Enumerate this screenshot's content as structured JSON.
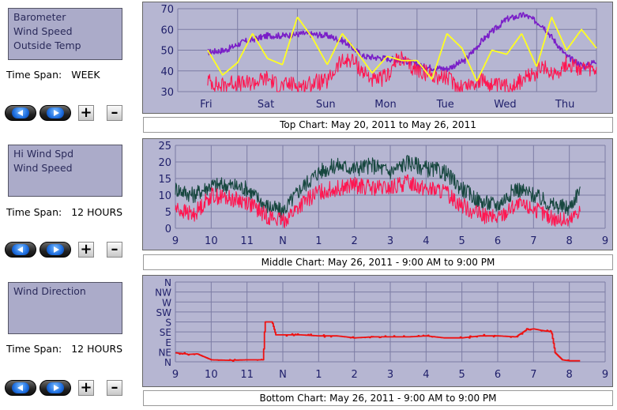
{
  "panels": [
    {
      "legend": [
        "Barometer",
        "Wind Speed",
        "Outside Temp"
      ],
      "time_span_label": "Time Span:",
      "time_span_value": "WEEK",
      "caption": "Top Chart:  May 20, 2011  to  May 26, 2011"
    },
    {
      "legend": [
        "Hi Wind Spd",
        "Wind Speed"
      ],
      "time_span_label": "Time Span:",
      "time_span_value": "12 HOURS",
      "caption": "Middle Chart:  May 26, 2011 - 9:00 AM  to  9:00 PM"
    },
    {
      "legend": [
        "Wind Direction"
      ],
      "time_span_label": "Time Span:",
      "time_span_value": "12 HOURS",
      "caption": "Bottom Chart:  May 26, 2011 - 9:00 AM  to  9:00 PM"
    }
  ],
  "controls": {
    "prev_icon": "left-arrow-icon",
    "next_icon": "right-arrow-icon",
    "zoom_in_label": "+",
    "zoom_out_label": "–"
  },
  "colors": {
    "barometer": "#7a1fc8",
    "wind_speed": "#ff1650",
    "outside_temp": "#ffff20",
    "hi_wind_spd": "#17473f",
    "wind_direction": "#ee1111",
    "plot_bg": "#b6b6d2",
    "grid": "#7c7ca4"
  },
  "chart_data": [
    {
      "type": "line",
      "ylim": [
        30,
        70
      ],
      "yticks": [
        30,
        40,
        50,
        60,
        70
      ],
      "categories": [
        "Fri",
        "Sat",
        "Sun",
        "Mon",
        "Tue",
        "Wed",
        "Thu"
      ],
      "series": [
        {
          "name": "Barometer",
          "x": [
            0,
            0.3,
            0.6,
            1,
            1.3,
            1.6,
            2,
            2.3,
            2.6,
            3,
            3.3,
            3.6,
            4,
            4.3,
            4.6,
            5,
            5.3,
            5.6,
            6,
            6.3,
            6.5
          ],
          "values": [
            49,
            50,
            54,
            57,
            57,
            58,
            57,
            54,
            47,
            46,
            45,
            42,
            41,
            45,
            55,
            65,
            67,
            62,
            47,
            42,
            45
          ]
        },
        {
          "name": "Wind Speed",
          "x": [
            0,
            0.2,
            0.4,
            0.6,
            0.8,
            1,
            1.2,
            1.4,
            1.6,
            1.8,
            2,
            2.2,
            2.4,
            2.6,
            2.8,
            3,
            3.2,
            3.4,
            3.6,
            3.8,
            4,
            4.2,
            4.4,
            4.6,
            4.8,
            5,
            5.2,
            5.4,
            5.6,
            5.8,
            6,
            6.2,
            6.5
          ],
          "values": [
            34,
            31,
            33,
            32,
            33,
            35,
            31,
            32,
            31,
            33,
            33,
            42,
            44,
            38,
            33,
            36,
            45,
            40,
            38,
            36,
            35,
            31,
            32,
            34,
            31,
            31,
            33,
            36,
            40,
            37,
            42,
            40,
            38
          ]
        },
        {
          "name": "Outside Temp",
          "x": [
            0,
            0.25,
            0.5,
            0.75,
            1,
            1.25,
            1.5,
            1.75,
            2,
            2.25,
            2.5,
            2.75,
            3,
            3.25,
            3.5,
            3.75,
            4,
            4.25,
            4.5,
            4.75,
            5,
            5.25,
            5.5,
            5.75,
            6,
            6.25,
            6.5
          ],
          "values": [
            50,
            38,
            44,
            58,
            46,
            43,
            66,
            56,
            43,
            58,
            49,
            39,
            47,
            45,
            45,
            36,
            58,
            51,
            35,
            50,
            48,
            58,
            42,
            66,
            50,
            60,
            51
          ]
        }
      ]
    },
    {
      "type": "line",
      "ylim": [
        0,
        25
      ],
      "yticks": [
        0,
        5,
        10,
        15,
        20,
        25
      ],
      "categories": [
        "9",
        "10",
        "11",
        "N",
        "1",
        "2",
        "3",
        "4",
        "5",
        "6",
        "7",
        "8",
        "9"
      ],
      "series": [
        {
          "name": "Hi Wind Spd",
          "x": [
            0,
            0.5,
            1,
            1.5,
            2,
            2.5,
            3,
            3.5,
            4,
            4.5,
            5,
            5.5,
            6,
            6.5,
            7,
            7.5,
            8,
            8.5,
            9,
            9.5,
            10,
            10.5,
            11,
            11.3
          ],
          "values": [
            12,
            10,
            13,
            13,
            12,
            7,
            5,
            12,
            17,
            19,
            18,
            19,
            17,
            20,
            18,
            17,
            12,
            8,
            7,
            12,
            10,
            7,
            6,
            12
          ]
        },
        {
          "name": "Wind Speed",
          "x": [
            0,
            0.5,
            1,
            1.5,
            2,
            2.5,
            3,
            3.5,
            4,
            4.5,
            5,
            5.5,
            6,
            6.5,
            7,
            7.5,
            8,
            8.5,
            9,
            9.5,
            10,
            10.5,
            11,
            11.3
          ],
          "values": [
            6,
            4,
            10,
            9,
            8,
            4,
            2,
            7,
            11,
            12,
            13,
            12,
            12,
            14,
            12,
            11,
            7,
            4,
            3,
            7,
            6,
            3,
            2,
            6
          ]
        }
      ]
    },
    {
      "type": "line",
      "yticks": [
        "N",
        "NE",
        "E",
        "SE",
        "S",
        "SW",
        "W",
        "NW",
        "N"
      ],
      "categories": [
        "9",
        "10",
        "11",
        "N",
        "1",
        "2",
        "3",
        "4",
        "5",
        "6",
        "7",
        "8",
        "9"
      ],
      "series": [
        {
          "name": "Wind Direction",
          "x": [
            0,
            0.4,
            0.6,
            0.8,
            1,
            1.5,
            2,
            2.3,
            2.45,
            2.5,
            2.6,
            2.7,
            2.8,
            3,
            3.5,
            4,
            4.5,
            5,
            5.5,
            6,
            6.5,
            7,
            7.5,
            8,
            8.5,
            9,
            9.5,
            9.8,
            10,
            10.3,
            10.5,
            10.6,
            10.8,
            11,
            11.3
          ],
          "values": [
            0.9,
            0.75,
            0.8,
            0.5,
            0.2,
            0.15,
            0.2,
            0.2,
            0.2,
            4,
            4,
            4,
            2.7,
            2.7,
            2.7,
            2.6,
            2.6,
            2.4,
            2.5,
            2.5,
            2.5,
            2.6,
            2.4,
            2.4,
            2.6,
            2.6,
            2.5,
            3.2,
            3.3,
            3.1,
            3,
            0.9,
            0.2,
            0.1,
            0.1
          ]
        }
      ]
    }
  ]
}
